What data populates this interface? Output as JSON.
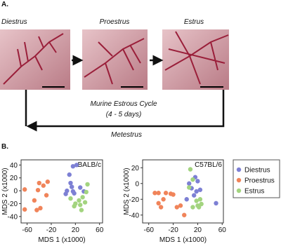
{
  "panel_a": {
    "label": "A.",
    "stages": [
      "Diestrus",
      "Proestrus",
      "Estrus"
    ],
    "cycle_label": "Murine Estrous Cycle",
    "cycle_duration": "(4 - 5 days)",
    "return_label": "Metestrus"
  },
  "panel_b": {
    "label": "B."
  },
  "chart_data": [
    {
      "type": "scatter",
      "title": "BALB/c",
      "x_label": "MDS 1 (x1000)",
      "y_label": "MDS 2 (x1000)",
      "xlim": [
        -70,
        65
      ],
      "ylim": [
        -50,
        48
      ],
      "xticks": [
        -60,
        -20,
        20,
        60
      ],
      "yticks": [
        -40,
        -20,
        0,
        20,
        40
      ],
      "series": [
        {
          "name": "Diestrus",
          "color": "#7d80d4",
          "x": [
            4,
            6,
            10,
            12,
            14,
            16,
            18,
            16,
            22,
            28,
            34
          ],
          "values": [
            -5,
            0,
            25,
            12,
            6,
            -1,
            -4,
            38,
            40,
            5,
            -1
          ]
        },
        {
          "name": "Proestrus",
          "color": "#f0845a",
          "x": [
            -64,
            -64,
            -48,
            -44,
            -42,
            -40,
            -38,
            -33,
            -28,
            -26
          ],
          "values": [
            2,
            -29,
            -15,
            -30,
            1,
            12,
            -27,
            8,
            -7,
            14
          ]
        },
        {
          "name": "Estrus",
          "color": "#a3d47f",
          "x": [
            12,
            18,
            20,
            26,
            28,
            32,
            36,
            38,
            40,
            30
          ],
          "values": [
            -12,
            -24,
            -20,
            -15,
            -22,
            -10,
            -18,
            -2,
            10,
            -30
          ]
        }
      ]
    },
    {
      "type": "scatter",
      "title": "C57BL/6",
      "x_label": "MDS 1 (x1000)",
      "y_label": "MDS 2 (x1000)",
      "xlim": [
        -70,
        62
      ],
      "ylim": [
        -50,
        30
      ],
      "xticks": [
        -60,
        -20,
        20,
        60
      ],
      "yticks": [
        -40,
        -20,
        0,
        20
      ],
      "series": [
        {
          "name": "Diestrus",
          "color": "#7d80d4",
          "x": [
            2,
            6,
            10,
            16,
            20,
            24,
            50,
            14,
            18
          ],
          "values": [
            -20,
            0,
            -6,
            8,
            3,
            -8,
            -25,
            -15,
            -10
          ]
        },
        {
          "name": "Proestrus",
          "color": "#f0845a",
          "x": [
            -50,
            -44,
            -44,
            -40,
            -32,
            -24,
            -20,
            -14,
            -8,
            -2,
            -36
          ],
          "values": [
            -12,
            -12,
            -25,
            -30,
            -12,
            -13,
            -14,
            -30,
            -28,
            -40,
            -20
          ]
        },
        {
          "name": "Estrus",
          "color": "#a3d47f",
          "x": [
            6,
            8,
            12,
            18,
            20,
            22,
            24,
            26,
            12
          ],
          "values": [
            -5,
            18,
            5,
            -22,
            -28,
            -30,
            -20,
            -26,
            -30
          ]
        }
      ]
    }
  ]
}
